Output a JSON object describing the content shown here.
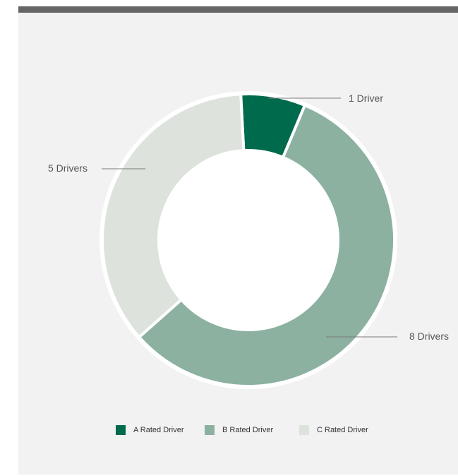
{
  "colors": {
    "top_bar": "#666666",
    "panel_background": "#f2f2f2",
    "leader_line": "#7a7a7a",
    "label_text": "#555555"
  },
  "chart_data": {
    "type": "pie",
    "variant": "donut",
    "title": "",
    "categories": [
      "A Rated Driver",
      "B Rated Driver",
      "C Rated Driver"
    ],
    "values": [
      1,
      8,
      5
    ],
    "colors": [
      "#006a4d",
      "#8cb1a1",
      "#dde2dd"
    ],
    "data_labels": [
      "1 Driver",
      "8 Drivers",
      "5 Drivers"
    ],
    "legend": {
      "position": "bottom",
      "entries": [
        "A Rated Driver",
        "B Rated Driver",
        "C Rated Driver"
      ]
    }
  }
}
